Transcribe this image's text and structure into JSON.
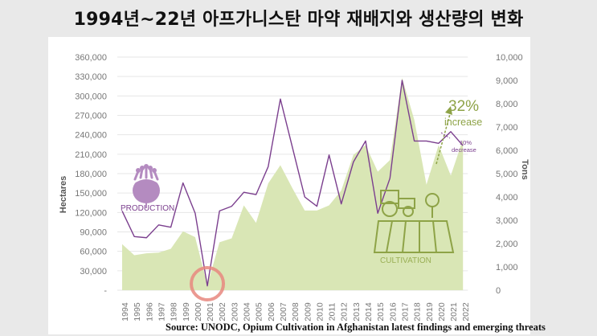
{
  "title": "1994년~22년 아프가니스탄 마약 재배지와 생산량의 변화",
  "source": "Source: UNODC, Opium Cultivation in Afghanistan latest findings and emerging threats",
  "colors": {
    "background": "#e9e9e9",
    "panel": "#ffffff",
    "production_line": "#7b3f8e",
    "cultivation_area": "#d9e6b5",
    "cultivation_text": "#9aaf55",
    "increase_text": "#8ea347",
    "highlight_circle": "#e8877f",
    "poppy_icon": "#b48bc0"
  },
  "labels": {
    "production": "PRODUCTION",
    "cultivation": "CULTIVATION",
    "increase_pct": "32%",
    "increase_word": "increase",
    "decrease_pct": "10%",
    "decrease_word": "decrease"
  },
  "chart_data": {
    "type": "area",
    "xlabel": "",
    "ylabel": "Hectares",
    "y2label": "Tons",
    "ylim": [
      0,
      360000
    ],
    "y2lim": [
      0,
      10000
    ],
    "yticks": [
      "-",
      "30,000",
      "60,000",
      "90,000",
      "120,000",
      "150,000",
      "180,000",
      "210,000",
      "240,000",
      "270,000",
      "300,000",
      "330,000",
      "360,000"
    ],
    "y2ticks": [
      "0",
      "1,000",
      "2,000",
      "3,000",
      "4,000",
      "5,000",
      "6,000",
      "7,000",
      "8,000",
      "9,000",
      "10,000"
    ],
    "grid": true,
    "categories": [
      "1994",
      "1995",
      "1996",
      "1997",
      "1998",
      "1999",
      "2000",
      "2001",
      "2002",
      "2003",
      "2004",
      "2005",
      "2006",
      "2007",
      "2008",
      "2009",
      "2010",
      "2011",
      "2012",
      "2013",
      "2014",
      "2015",
      "2016",
      "2017",
      "2018",
      "2019",
      "2020",
      "2021",
      "2022"
    ],
    "series": [
      {
        "name": "CULTIVATION",
        "axis": "left",
        "kind": "area",
        "values": [
          71000,
          54000,
          57000,
          58000,
          64000,
          91000,
          82000,
          8000,
          74000,
          80000,
          131000,
          104000,
          165000,
          193000,
          157000,
          123000,
          123000,
          131000,
          154000,
          209000,
          224000,
          183000,
          201000,
          328000,
          263000,
          163000,
          224000,
          177000,
          233000
        ]
      },
      {
        "name": "PRODUCTION",
        "axis": "right",
        "kind": "line",
        "values": [
          3400,
          2300,
          2250,
          2800,
          2700,
          4600,
          3300,
          185,
          3400,
          3600,
          4200,
          4100,
          5300,
          8200,
          6100,
          4000,
          3600,
          5800,
          3700,
          5500,
          6400,
          3300,
          4800,
          9000,
          6400,
          6400,
          6300,
          6800,
          6200
        ]
      }
    ]
  }
}
